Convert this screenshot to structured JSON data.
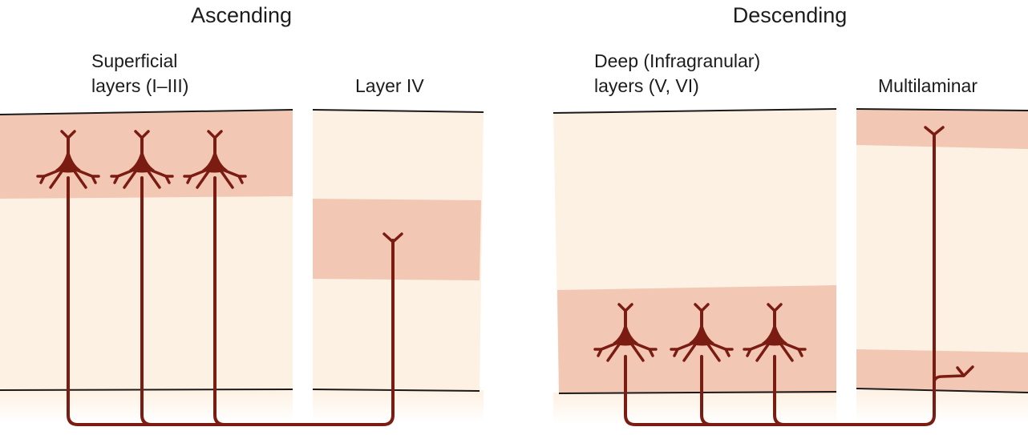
{
  "ascending": {
    "title": "Ascending",
    "superficial_label": [
      "Superficial",
      "layers (I–III)"
    ],
    "layer4_label": "Layer IV"
  },
  "descending": {
    "title": "Descending",
    "deep_label": [
      "Deep (Infragranular)",
      "layers (V, VI)"
    ],
    "multilaminar_label": "Multilaminar"
  },
  "colors": {
    "background_band": "#fdf1e3",
    "highlight_band": "#f2c8b4",
    "neuron": "#7b1c12",
    "boundary": "#1a1a1a"
  }
}
